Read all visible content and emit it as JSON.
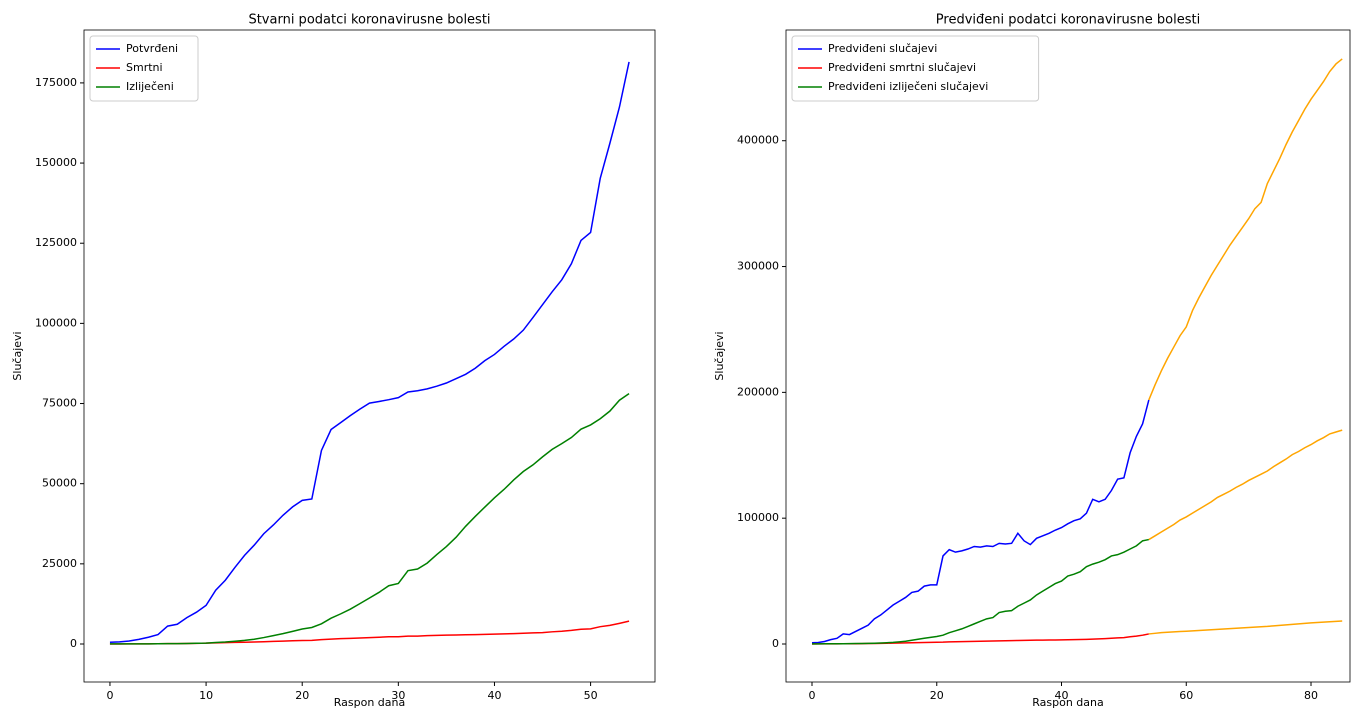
{
  "chart_data": [
    {
      "type": "line",
      "title": "Stvarni podatci koronavirusne bolesti",
      "xlabel": "Raspon dana",
      "ylabel": "Slučajevi",
      "x": [
        0,
        1,
        2,
        3,
        4,
        5,
        6,
        7,
        8,
        9,
        10,
        11,
        12,
        13,
        14,
        15,
        16,
        17,
        18,
        19,
        20,
        21,
        22,
        23,
        24,
        25,
        26,
        27,
        28,
        29,
        30,
        31,
        32,
        33,
        34,
        35,
        36,
        37,
        38,
        39,
        40,
        41,
        42,
        43,
        44,
        45,
        46,
        47,
        48,
        49,
        50,
        51,
        52,
        53,
        54
      ],
      "xlim": [
        -2.7,
        56.7
      ],
      "ylim": [
        -11850,
        191500
      ],
      "xticks": [
        0,
        10,
        20,
        30,
        40,
        50
      ],
      "yticks": [
        0,
        25000,
        50000,
        75000,
        100000,
        125000,
        150000,
        175000
      ],
      "legend": "upper left",
      "series": [
        {
          "name": "Potvrđeni",
          "color": "#0000ff",
          "values": [
            555,
            654,
            941,
            1434,
            2118,
            2927,
            5578,
            6166,
            8234,
            9927,
            12038,
            16787,
            19881,
            23892,
            27636,
            30818,
            34392,
            37121,
            40151,
            42763,
            44803,
            45222,
            60370,
            66887,
            69032,
            71226,
            73260,
            75138,
            75641,
            76199,
            76843,
            78599,
            78985,
            79570,
            80415,
            81397,
            82756,
            84124,
            86013,
            88371,
            90309,
            92844,
            95124,
            97886,
            101800,
            105836,
            109835,
            113588,
            118582,
            125865,
            128343,
            145193,
            156097,
            167449,
            181546
          ]
        },
        {
          "name": "Smrtni",
          "color": "#ff0000",
          "values": [
            17,
            18,
            26,
            42,
            56,
            82,
            131,
            133,
            171,
            213,
            259,
            362,
            426,
            492,
            564,
            634,
            719,
            806,
            906,
            1013,
            1113,
            1118,
            1371,
            1523,
            1666,
            1770,
            1868,
            2007,
            2122,
            2247,
            2251,
            2458,
            2469,
            2629,
            2708,
            2770,
            2814,
            2872,
            2941,
            2996,
            3085,
            3160,
            3254,
            3348,
            3460,
            3558,
            3803,
            3996,
            4262,
            4615,
            4720,
            5404,
            5819,
            6440,
            7126
          ]
        },
        {
          "name": "Izliječeni",
          "color": "#008000",
          "values": [
            28,
            30,
            36,
            39,
            52,
            61,
            107,
            126,
            143,
            222,
            284,
            472,
            623,
            852,
            1124,
            1487,
            2011,
            2616,
            3244,
            3946,
            4683,
            5150,
            6295,
            8058,
            9395,
            10865,
            12583,
            14352,
            16121,
            18177,
            18890,
            22886,
            23394,
            25227,
            27905,
            30384,
            33277,
            36711,
            39782,
            42716,
            45602,
            48228,
            51170,
            53796,
            55865,
            58359,
            60694,
            62494,
            64404,
            67003,
            68324,
            70251,
            72624,
            76034,
            78088
          ]
        }
      ]
    },
    {
      "type": "line",
      "title": "Predviđeni podatci koronavirusne bolesti",
      "xlabel": "Raspon dana",
      "ylabel": "Slučajevi",
      "x": [
        0,
        1,
        2,
        3,
        4,
        5,
        6,
        7,
        8,
        9,
        10,
        11,
        12,
        13,
        14,
        15,
        16,
        17,
        18,
        19,
        20,
        21,
        22,
        23,
        24,
        25,
        26,
        27,
        28,
        29,
        30,
        31,
        32,
        33,
        34,
        35,
        36,
        37,
        38,
        39,
        40,
        41,
        42,
        43,
        44,
        45,
        46,
        47,
        48,
        49,
        50,
        51,
        52,
        53,
        54
      ],
      "xlim": [
        -4.17,
        86.25
      ],
      "ylim": [
        -30200,
        488000
      ],
      "xticks": [
        0,
        20,
        40,
        60,
        80
      ],
      "yticks": [
        0,
        100000,
        200000,
        300000,
        400000
      ],
      "legend": "upper left",
      "series": [
        {
          "name": "Predviđeni slučajevi",
          "color": "#0000ff",
          "values": [
            1000,
            1200,
            2000,
            3500,
            4500,
            8000,
            7500,
            10000,
            12500,
            15000,
            20000,
            23000,
            27000,
            31000,
            34000,
            37000,
            41000,
            42000,
            46000,
            47000,
            47000,
            70000,
            75000,
            73000,
            74000,
            75500,
            77500,
            77000,
            78000,
            77500,
            80000,
            79500,
            80000,
            88000,
            82000,
            79000,
            84000,
            86000,
            88000,
            90500,
            92500,
            95500,
            98000,
            99500,
            104000,
            115000,
            113000,
            115000,
            122000,
            131000,
            132000,
            152000,
            165000,
            175000,
            194000
          ]
        },
        {
          "name": "Predviđeni smrtni slučajevi",
          "color": "#ff0000",
          "values": [
            50,
            60,
            80,
            100,
            120,
            150,
            200,
            250,
            300,
            350,
            400,
            500,
            600,
            700,
            800,
            900,
            1000,
            1100,
            1200,
            1300,
            1400,
            1500,
            1700,
            1800,
            1900,
            2000,
            2100,
            2200,
            2300,
            2400,
            2500,
            2600,
            2700,
            2800,
            2900,
            3000,
            3050,
            3100,
            3150,
            3200,
            3300,
            3400,
            3500,
            3600,
            3700,
            3900,
            4100,
            4300,
            4600,
            4900,
            5100,
            5800,
            6300,
            7000,
            8000
          ]
        },
        {
          "name": "Predviđeni izliječeni slučajevi",
          "color": "#008000",
          "values": [
            100,
            120,
            150,
            180,
            200,
            250,
            300,
            350,
            400,
            500,
            600,
            800,
            1000,
            1300,
            1700,
            2200,
            3000,
            3800,
            4600,
            5300,
            6000,
            7000,
            9000,
            10500,
            12000,
            14000,
            16000,
            18000,
            20000,
            21000,
            25000,
            26000,
            26500,
            30000,
            32500,
            35000,
            39000,
            42000,
            45000,
            48000,
            50000,
            54000,
            55500,
            57500,
            61500,
            63500,
            65000,
            67000,
            70000,
            71000,
            73000,
            75500,
            78000,
            82000,
            83000
          ]
        },
        {
          "color": "#ffa500",
          "x": [
            54,
            55,
            56,
            57,
            58,
            59,
            60,
            61,
            62,
            63,
            64,
            65,
            66,
            67,
            68,
            69,
            70,
            71,
            72,
            73,
            74,
            75,
            76,
            77,
            78,
            79,
            80,
            81,
            82,
            83,
            84,
            85
          ],
          "values": [
            194000,
            206000,
            217000,
            227000,
            236000,
            245000,
            252000,
            265000,
            275000,
            284000,
            293000,
            301000,
            309000,
            317000,
            324000,
            331000,
            338000,
            346000,
            351000,
            366000,
            376000,
            386000,
            397000,
            407000,
            416000,
            425000,
            433000,
            440000,
            447000,
            455000,
            461000,
            465000
          ]
        },
        {
          "color": "#ffa500",
          "x": [
            54,
            55,
            56,
            57,
            58,
            59,
            60,
            61,
            62,
            63,
            64,
            65,
            66,
            67,
            68,
            69,
            70,
            71,
            72,
            73,
            74,
            75,
            76,
            77,
            78,
            79,
            80,
            81,
            82,
            83,
            84,
            85
          ],
          "values": [
            83000,
            86000,
            89000,
            92000,
            95000,
            98500,
            101000,
            104000,
            107000,
            110000,
            113000,
            116500,
            119000,
            121500,
            124500,
            127000,
            130000,
            132500,
            135000,
            137500,
            141000,
            144000,
            147000,
            150500,
            153000,
            156000,
            158500,
            161500,
            164000,
            167000,
            168500,
            170000
          ]
        },
        {
          "color": "#ffa500",
          "x": [
            54,
            55,
            56,
            57,
            58,
            59,
            60,
            61,
            62,
            63,
            64,
            65,
            66,
            67,
            68,
            69,
            70,
            71,
            72,
            73,
            74,
            75,
            76,
            77,
            78,
            79,
            80,
            81,
            82,
            83,
            84,
            85
          ],
          "values": [
            8000,
            8500,
            9000,
            9300,
            9600,
            9900,
            10100,
            10400,
            10700,
            11000,
            11300,
            11600,
            11900,
            12200,
            12500,
            12800,
            13100,
            13400,
            13700,
            14000,
            14400,
            14800,
            15200,
            15600,
            16000,
            16400,
            16800,
            17100,
            17400,
            17700,
            18000,
            18300
          ]
        }
      ]
    }
  ]
}
